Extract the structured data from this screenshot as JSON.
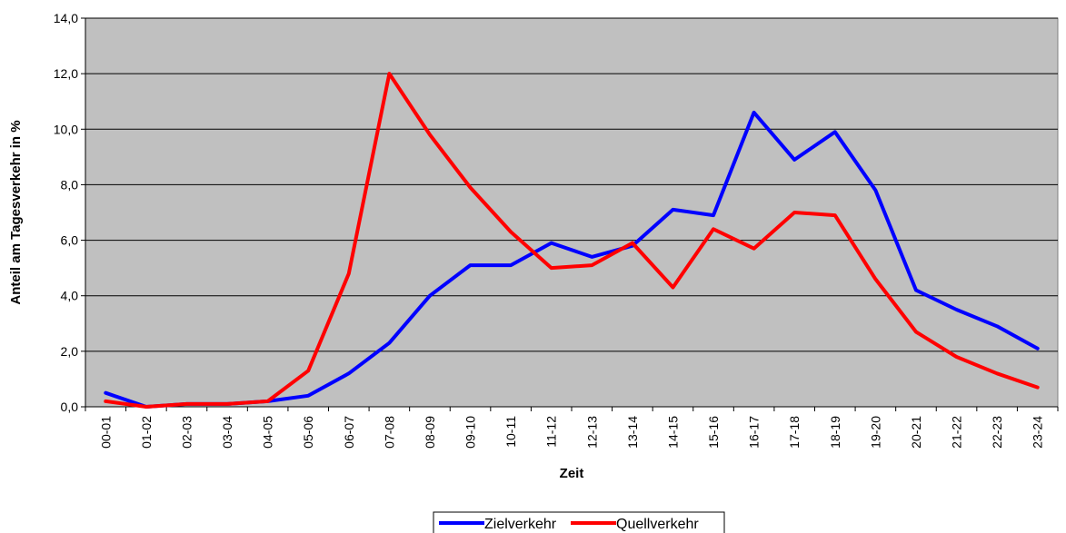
{
  "chart_data": {
    "type": "line",
    "title": "",
    "xlabel": "Zeit",
    "ylabel": "Anteil am Tagesverkehr in %",
    "ylim": [
      0,
      14
    ],
    "yticks": [
      0,
      2,
      4,
      6,
      8,
      10,
      12,
      14
    ],
    "ytick_labels": [
      "0,0",
      "2,0",
      "4,0",
      "6,0",
      "8,0",
      "10,0",
      "12,0",
      "14,0"
    ],
    "grid": true,
    "legend_position": "bottom",
    "categories": [
      "00-01",
      "01-02",
      "02-03",
      "03-04",
      "04-05",
      "05-06",
      "06-07",
      "07-08",
      "08-09",
      "09-10",
      "10-11",
      "11-12",
      "12-13",
      "13-14",
      "14-15",
      "15-16",
      "16-17",
      "17-18",
      "18-19",
      "19-20",
      "20-21",
      "21-22",
      "22-23",
      "23-24"
    ],
    "series": [
      {
        "name": "Zielverkehr",
        "color": "#0000ff",
        "values": [
          0.5,
          0.0,
          0.1,
          0.1,
          0.2,
          0.4,
          1.2,
          2.3,
          4.0,
          5.1,
          5.1,
          5.9,
          5.4,
          5.8,
          7.1,
          6.9,
          10.6,
          8.9,
          9.9,
          7.8,
          4.2,
          3.5,
          2.9,
          2.1
        ]
      },
      {
        "name": "Quellverkehr",
        "color": "#ff0000",
        "values": [
          0.2,
          0.0,
          0.1,
          0.1,
          0.2,
          1.3,
          4.8,
          12.0,
          9.8,
          7.9,
          6.3,
          5.0,
          5.1,
          5.9,
          4.3,
          6.4,
          5.7,
          7.0,
          6.9,
          4.6,
          2.7,
          1.8,
          1.2,
          0.7
        ]
      }
    ],
    "colors": {
      "plot_background": "#c0c0c0",
      "gridline": "#000000"
    }
  }
}
